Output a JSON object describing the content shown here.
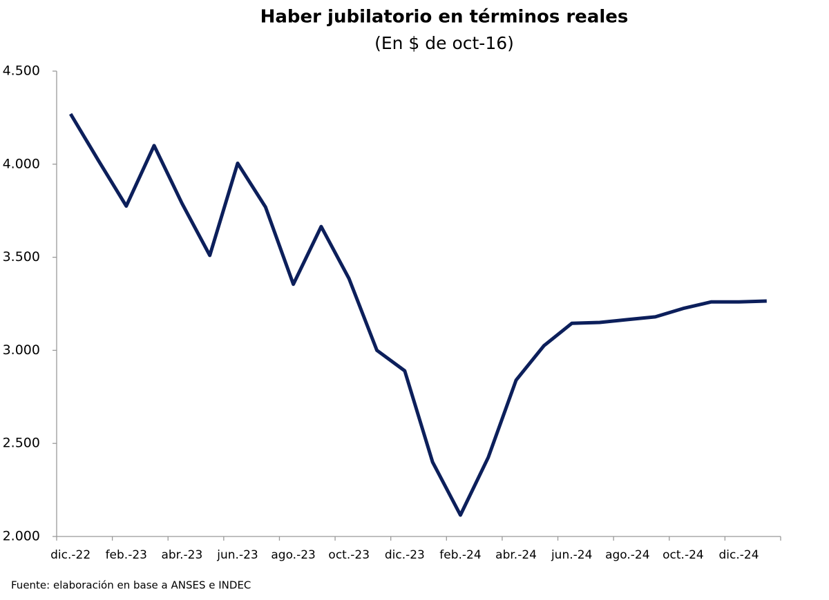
{
  "chart_data": {
    "type": "line",
    "title": "Haber jubilatorio en términos reales",
    "subtitle": "(En $ de oct-16)",
    "source": "Fuente: elaboración en base a ANSES e INDEC",
    "categories": [
      "dic.-22",
      null,
      "feb.-23",
      null,
      "abr.-23",
      null,
      "jun.-23",
      null,
      "ago.-23",
      null,
      "oct.-23",
      null,
      "dic.-23",
      null,
      "feb.-24",
      null,
      "abr.-24",
      null,
      "jun.-24",
      null,
      "ago.-24",
      null,
      "oct.-24",
      null,
      "dic.-24",
      null
    ],
    "series": [
      {
        "name": "Haber jubilatorio",
        "color": "#0c1f5b",
        "values": [
          4270,
          4020,
          3775,
          4100,
          3790,
          3510,
          4005,
          3770,
          3355,
          3665,
          3385,
          3000,
          2890,
          2400,
          2115,
          2425,
          2840,
          3025,
          3145,
          3150,
          3165,
          3180,
          3225,
          3260,
          3260,
          3265
        ]
      }
    ],
    "ylim": [
      2000,
      4500
    ],
    "yticks": [
      {
        "value": 2000,
        "label": "2.000"
      },
      {
        "value": 2500,
        "label": "2.500"
      },
      {
        "value": 3000,
        "label": "3.000"
      },
      {
        "value": 3500,
        "label": "3.500"
      },
      {
        "value": 4000,
        "label": "4.000"
      },
      {
        "value": 4500,
        "label": "4.500"
      }
    ],
    "grid": false
  }
}
